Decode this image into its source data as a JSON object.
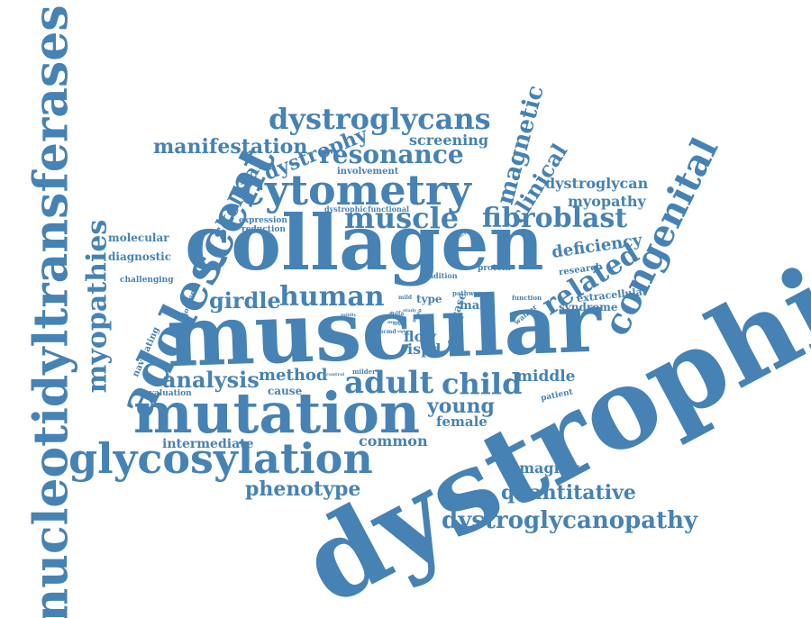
{
  "word_color": "#4682b4",
  "background_color": "#ffffff",
  "words": [
    "dystrophies",
    "muscular",
    "collagen",
    "mutation",
    "nucleotidyltransferases",
    "adolescent",
    "glycosylation",
    "cytometry",
    "congenital",
    "dystroglycans",
    "myopathies",
    "dystroglycanopathy",
    "muscle",
    "fibroblast",
    "resonance",
    "adult",
    "child",
    "human",
    "related",
    "manifestation",
    "magnetic",
    "dystrophy",
    "girdle",
    "analysis",
    "quantitative",
    "phenotype",
    "clinical",
    "skeletal",
    "young",
    "dystroglycan",
    "myopathy",
    "screening",
    "deficiency",
    "method",
    "common",
    "imaging",
    "female",
    "middle",
    "intermediate",
    "molecular",
    "diagnostic",
    "challenging",
    "syndrome",
    "research",
    "extracellular",
    "aged",
    "flow",
    "ispd",
    "type",
    "male",
    "cause",
    "evaluation",
    "navigating",
    "involvement",
    "expression",
    "reduction",
    "dystrophic",
    "functional",
    "condition",
    "protein",
    "pathway",
    "case",
    "journey",
    "patient",
    "walker",
    "function",
    "mild",
    "mildly",
    "colfa",
    "ucmd",
    "studies",
    "control",
    "milder",
    "capacity",
    "group",
    "trial",
    "study",
    "music",
    "muscle-eye",
    "sight",
    "rigid"
  ]
}
